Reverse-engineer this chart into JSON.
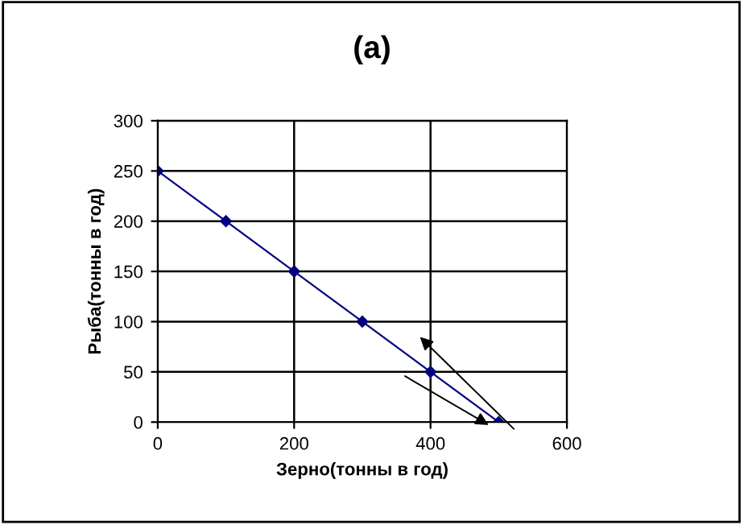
{
  "chart_data": {
    "type": "line",
    "title": "(a)",
    "xlabel": "Зерно(тонны в год)",
    "ylabel": "Рыба(тонны в год)",
    "x": [
      0,
      100,
      200,
      300,
      400,
      500
    ],
    "series": [
      {
        "color": "#000080",
        "values": [
          250,
          200,
          150,
          100,
          50,
          0
        ]
      }
    ],
    "xlim": [
      0,
      600
    ],
    "xticks": [
      0,
      200,
      400,
      600
    ],
    "ylim": [
      0,
      300
    ],
    "yticks": [
      0,
      50,
      100,
      150,
      200,
      250,
      300
    ],
    "grid": true,
    "marker": "diamond",
    "line_style": "solid",
    "legend": false
  }
}
